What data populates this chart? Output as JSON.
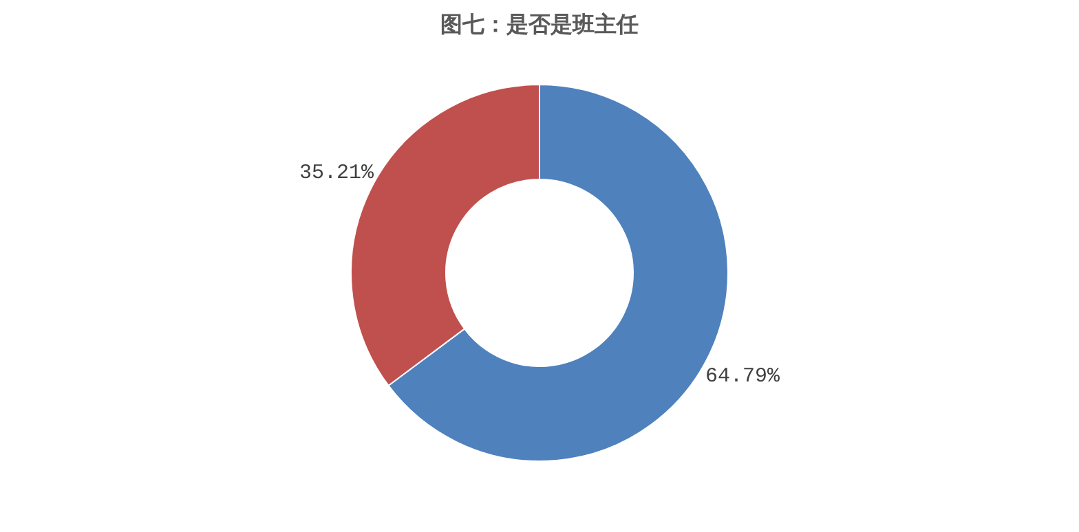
{
  "chart_data": {
    "type": "donut",
    "title": "图七：是否是班主任",
    "categories": [
      null,
      null
    ],
    "values": [
      64.79,
      35.21
    ],
    "colors": [
      "#4f81bd",
      "#c0504d"
    ],
    "value_labels": [
      "64.79%",
      "35.21%"
    ],
    "legend": false
  }
}
